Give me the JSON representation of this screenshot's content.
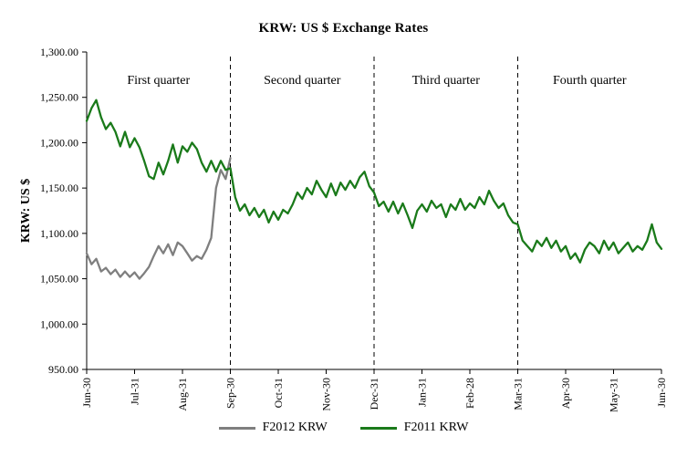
{
  "chart_data": {
    "type": "line",
    "title": "KRW: US $ Exchange Rates",
    "xlabel": "",
    "ylabel": "KRW: US $",
    "ylim": [
      950,
      1300
    ],
    "x_range": [
      0,
      12
    ],
    "grid": false,
    "legend_position": "bottom",
    "y_tick_values": [
      950,
      1000,
      1050,
      1100,
      1150,
      1200,
      1250,
      1300
    ],
    "y_tick_labels": [
      "950.00",
      "1,000.00",
      "1,050.00",
      "1,100.00",
      "1,150.00",
      "1,200.00",
      "1,250.00",
      "1,300.00"
    ],
    "x_tick_labels": [
      "Jun-30",
      "Jul-31",
      "Aug-31",
      "Sep-30",
      "Oct-31",
      "Nov-30",
      "Dec-31",
      "Jan-31",
      "Feb-28",
      "Mar-31",
      "Apr-30",
      "May-31",
      "Jun-30"
    ],
    "quarter_labels": [
      "First quarter",
      "Second quarter",
      "Third quarter",
      "Fourth quarter"
    ],
    "quarter_dividers_x": [
      3,
      6,
      9
    ],
    "series": [
      {
        "name": "F2012 KRW",
        "color": "#7f7f7f",
        "x_start": 0,
        "x_step": 0.1,
        "values": [
          1078,
          1066,
          1072,
          1058,
          1062,
          1055,
          1060,
          1052,
          1058,
          1052,
          1057,
          1050,
          1056,
          1063,
          1075,
          1086,
          1078,
          1088,
          1076,
          1090,
          1086,
          1078,
          1070,
          1075,
          1072,
          1082,
          1095,
          1150,
          1170,
          1160,
          1183
        ]
      },
      {
        "name": "F2011 KRW",
        "color": "#1a7a1a",
        "x_start": 0,
        "x_step": 0.1,
        "values": [
          1224,
          1238,
          1247,
          1228,
          1215,
          1222,
          1212,
          1196,
          1212,
          1195,
          1205,
          1195,
          1180,
          1163,
          1160,
          1178,
          1165,
          1180,
          1198,
          1178,
          1196,
          1190,
          1200,
          1193,
          1178,
          1168,
          1180,
          1168,
          1180,
          1170,
          1172,
          1140,
          1125,
          1132,
          1120,
          1128,
          1118,
          1126,
          1112,
          1124,
          1115,
          1126,
          1122,
          1132,
          1145,
          1138,
          1150,
          1143,
          1158,
          1148,
          1140,
          1155,
          1142,
          1156,
          1148,
          1158,
          1150,
          1162,
          1168,
          1152,
          1145,
          1130,
          1135,
          1124,
          1135,
          1122,
          1133,
          1120,
          1106,
          1125,
          1132,
          1124,
          1136,
          1128,
          1132,
          1118,
          1132,
          1126,
          1138,
          1126,
          1133,
          1128,
          1140,
          1132,
          1147,
          1136,
          1128,
          1133,
          1120,
          1112,
          1110,
          1092,
          1086,
          1080,
          1092,
          1086,
          1095,
          1084,
          1092,
          1080,
          1086,
          1072,
          1078,
          1068,
          1082,
          1090,
          1086,
          1078,
          1092,
          1082,
          1090,
          1078,
          1084,
          1090,
          1080,
          1086,
          1082,
          1092,
          1110,
          1090,
          1083
        ]
      }
    ]
  }
}
